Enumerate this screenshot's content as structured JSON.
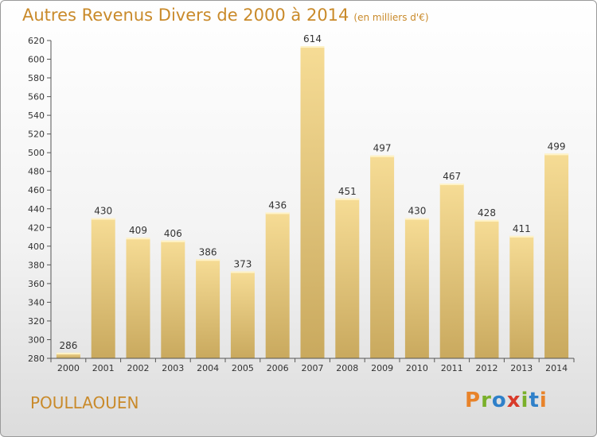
{
  "title": {
    "main": "Autres Revenus Divers de 2000 à 2014",
    "unit": "(en milliers d'€)"
  },
  "place": "POULLAOUEN",
  "logo": {
    "text": "Proxiti",
    "colors": [
      "#e8832a",
      "#7ab02a",
      "#2f80c9",
      "#d83a2a",
      "#7ab02a",
      "#2f80c9",
      "#e8832a"
    ]
  },
  "chart_data": {
    "type": "bar",
    "categories": [
      "2000",
      "2001",
      "2002",
      "2003",
      "2004",
      "2005",
      "2006",
      "2007",
      "2008",
      "2009",
      "2010",
      "2011",
      "2012",
      "2013",
      "2014"
    ],
    "values": [
      286,
      430,
      409,
      406,
      386,
      373,
      436,
      614,
      451,
      497,
      430,
      467,
      428,
      411,
      499
    ],
    "ylim": [
      280,
      620
    ],
    "yticks": [
      280,
      300,
      320,
      340,
      360,
      380,
      400,
      420,
      440,
      460,
      480,
      500,
      520,
      540,
      560,
      580,
      600,
      620
    ],
    "grid": false,
    "bar_color": "#e9cd7f"
  }
}
